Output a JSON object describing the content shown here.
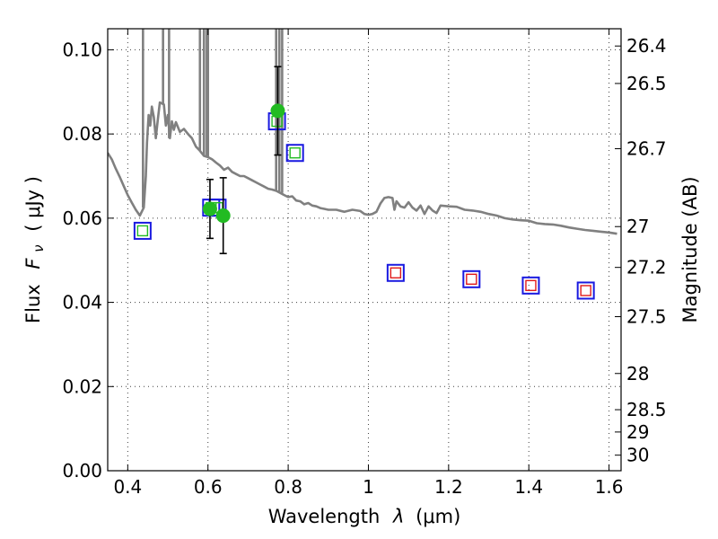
{
  "chart_data": {
    "type": "scatter",
    "title": "",
    "xlabel_text": "Wavelength",
    "xlabel_symbol": "λ",
    "xlabel_unit": "(μm)",
    "ylabel_text": "Flux",
    "ylabel_symbol": "F",
    "ylabel_symbol_sub": "ν",
    "ylabel_unit": "( μJy )",
    "y2label": "Magnitude (AB)",
    "xlim": [
      0.35,
      1.63
    ],
    "ylim": [
      0.0,
      0.105
    ],
    "grid": true,
    "x_ticks": [
      0.4,
      0.6,
      0.8,
      1.0,
      1.2,
      1.4,
      1.6
    ],
    "x_tick_labels": [
      "0.4",
      "0.6",
      "0.8",
      "1",
      "1.2",
      "1.4",
      "1.6"
    ],
    "y_ticks": [
      0.0,
      0.02,
      0.04,
      0.06,
      0.08,
      0.1
    ],
    "y_tick_labels": [
      "0.00",
      "0.02",
      "0.04",
      "0.06",
      "0.08",
      "0.10"
    ],
    "y2_ticks": [
      {
        "label": "26.4",
        "flux": 0.1009
      },
      {
        "label": "26.5",
        "flux": 0.092
      },
      {
        "label": "26.7",
        "flux": 0.0765
      },
      {
        "label": "27",
        "flux": 0.058
      },
      {
        "label": "27.2",
        "flux": 0.0483
      },
      {
        "label": "27.5",
        "flux": 0.0366
      },
      {
        "label": "28",
        "flux": 0.0231
      },
      {
        "label": "28.5",
        "flux": 0.0145
      },
      {
        "label": "29",
        "flux": 0.0092
      },
      {
        "label": "30",
        "flux": 0.0037
      }
    ],
    "series": [
      {
        "kind": "sed_model_line",
        "color": "#808080",
        "points": [
          [
            0.35,
            0.0755
          ],
          [
            0.36,
            0.074
          ],
          [
            0.37,
            0.0718
          ],
          [
            0.38,
            0.0698
          ],
          [
            0.39,
            0.0676
          ],
          [
            0.4,
            0.0655
          ],
          [
            0.41,
            0.0637
          ],
          [
            0.42,
            0.062
          ],
          [
            0.43,
            0.0606
          ],
          [
            0.44,
            0.0625
          ],
          [
            0.445,
            0.07
          ],
          [
            0.448,
            0.078
          ],
          [
            0.452,
            0.0845
          ],
          [
            0.456,
            0.082
          ],
          [
            0.46,
            0.0865
          ],
          [
            0.465,
            0.084
          ],
          [
            0.47,
            0.079
          ],
          [
            0.475,
            0.0835
          ],
          [
            0.48,
            0.0875
          ],
          [
            0.49,
            0.087
          ],
          [
            0.495,
            0.082
          ],
          [
            0.5,
            0.0845
          ],
          [
            0.505,
            0.079
          ],
          [
            0.51,
            0.083
          ],
          [
            0.515,
            0.081
          ],
          [
            0.52,
            0.0828
          ],
          [
            0.53,
            0.0805
          ],
          [
            0.54,
            0.0812
          ],
          [
            0.55,
            0.08
          ],
          [
            0.56,
            0.079
          ],
          [
            0.57,
            0.077
          ],
          [
            0.58,
            0.076
          ],
          [
            0.59,
            0.0748
          ],
          [
            0.6,
            0.0745
          ],
          [
            0.61,
            0.074
          ],
          [
            0.62,
            0.0732
          ],
          [
            0.63,
            0.0725
          ],
          [
            0.64,
            0.0715
          ],
          [
            0.65,
            0.072
          ],
          [
            0.66,
            0.071
          ],
          [
            0.67,
            0.0705
          ],
          [
            0.68,
            0.07
          ],
          [
            0.69,
            0.07
          ],
          [
            0.7,
            0.0695
          ],
          [
            0.71,
            0.069
          ],
          [
            0.72,
            0.0685
          ],
          [
            0.73,
            0.068
          ],
          [
            0.74,
            0.0675
          ],
          [
            0.75,
            0.067
          ],
          [
            0.76,
            0.0668
          ],
          [
            0.77,
            0.0665
          ],
          [
            0.78,
            0.066
          ],
          [
            0.79,
            0.0655
          ],
          [
            0.8,
            0.065
          ],
          [
            0.81,
            0.0652
          ],
          [
            0.82,
            0.0642
          ],
          [
            0.83,
            0.064
          ],
          [
            0.84,
            0.0633
          ],
          [
            0.85,
            0.0636
          ],
          [
            0.86,
            0.063
          ],
          [
            0.87,
            0.0628
          ],
          [
            0.88,
            0.0624
          ],
          [
            0.89,
            0.0622
          ],
          [
            0.9,
            0.062
          ],
          [
            0.92,
            0.062
          ],
          [
            0.94,
            0.0615
          ],
          [
            0.96,
            0.062
          ],
          [
            0.98,
            0.0617
          ],
          [
            0.99,
            0.061
          ],
          [
            1.0,
            0.0608
          ],
          [
            1.01,
            0.061
          ],
          [
            1.02,
            0.0615
          ],
          [
            1.03,
            0.0635
          ],
          [
            1.04,
            0.0648
          ],
          [
            1.05,
            0.065
          ],
          [
            1.06,
            0.0648
          ],
          [
            1.065,
            0.062
          ],
          [
            1.07,
            0.064
          ],
          [
            1.08,
            0.0628
          ],
          [
            1.09,
            0.0625
          ],
          [
            1.1,
            0.0638
          ],
          [
            1.11,
            0.0625
          ],
          [
            1.12,
            0.0618
          ],
          [
            1.13,
            0.063
          ],
          [
            1.14,
            0.061
          ],
          [
            1.15,
            0.0628
          ],
          [
            1.16,
            0.0618
          ],
          [
            1.17,
            0.0612
          ],
          [
            1.18,
            0.063
          ],
          [
            1.2,
            0.0628
          ],
          [
            1.22,
            0.0627
          ],
          [
            1.24,
            0.062
          ],
          [
            1.26,
            0.0618
          ],
          [
            1.28,
            0.0615
          ],
          [
            1.3,
            0.061
          ],
          [
            1.32,
            0.0606
          ],
          [
            1.34,
            0.06
          ],
          [
            1.36,
            0.0597
          ],
          [
            1.38,
            0.0595
          ],
          [
            1.4,
            0.0594
          ],
          [
            1.42,
            0.0588
          ],
          [
            1.44,
            0.0586
          ],
          [
            1.46,
            0.0585
          ],
          [
            1.48,
            0.0582
          ],
          [
            1.5,
            0.0578
          ],
          [
            1.52,
            0.0575
          ],
          [
            1.54,
            0.0572
          ],
          [
            1.56,
            0.057
          ],
          [
            1.58,
            0.0568
          ],
          [
            1.6,
            0.0566
          ],
          [
            1.62,
            0.0563
          ]
        ],
        "emission_spikes": [
          {
            "x": 0.438,
            "top": 0.105
          },
          {
            "x": 0.488,
            "top": 0.105
          },
          {
            "x": 0.503,
            "top": 0.105
          },
          {
            "x": 0.58,
            "top": 0.105
          },
          {
            "x": 0.59,
            "top": 0.105
          },
          {
            "x": 0.597,
            "top": 0.105
          },
          {
            "x": 0.6,
            "top": 0.105
          },
          {
            "x": 0.77,
            "top": 0.105
          },
          {
            "x": 0.778,
            "top": 0.105
          },
          {
            "x": 0.785,
            "top": 0.105
          }
        ]
      },
      {
        "kind": "observed_with_errors",
        "color": "#22bb22",
        "points": [
          {
            "x": 0.605,
            "y": 0.0622,
            "err": 0.007
          },
          {
            "x": 0.638,
            "y": 0.0606,
            "err": 0.009
          },
          {
            "x": 0.774,
            "y": 0.0855,
            "err": 0.0105
          }
        ]
      },
      {
        "kind": "model_band_flux_blue_squares",
        "color": "#1a1ae0",
        "points": [
          {
            "x": 0.437,
            "y": 0.057,
            "inner": "#22bb22"
          },
          {
            "x": 0.608,
            "y": 0.0625,
            "inner": "#22bb22"
          },
          {
            "x": 0.624,
            "y": 0.0625,
            "inner": "#22bb22"
          },
          {
            "x": 0.772,
            "y": 0.083,
            "inner": "#22bb22"
          },
          {
            "x": 0.817,
            "y": 0.0755,
            "inner": "#22bb22"
          },
          {
            "x": 1.068,
            "y": 0.047,
            "inner": "#e01a1a"
          },
          {
            "x": 1.257,
            "y": 0.0455,
            "inner": "#e01a1a"
          },
          {
            "x": 1.405,
            "y": 0.044,
            "inner": "#e01a1a"
          },
          {
            "x": 1.542,
            "y": 0.0428,
            "inner": "#e01a1a"
          }
        ]
      }
    ]
  }
}
